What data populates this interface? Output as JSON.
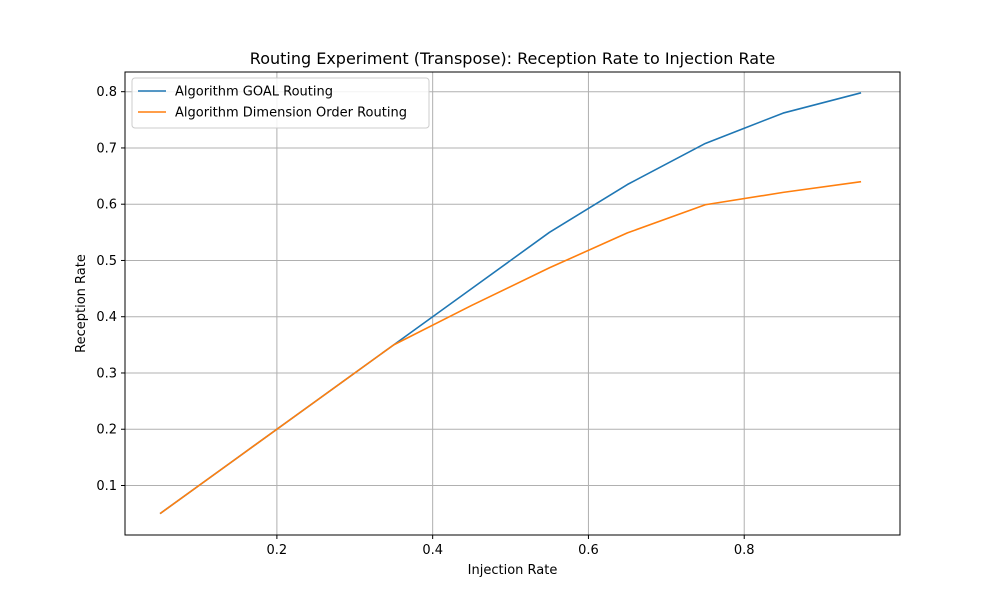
{
  "chart_data": {
    "type": "line",
    "title": "Routing Experiment (Transpose): Reception Rate to Injection Rate",
    "xlabel": "Injection Rate",
    "ylabel": "Reception Rate",
    "xlim": [
      0.005,
      1.0
    ],
    "ylim": [
      0.012,
      0.835
    ],
    "xticks": [
      0.2,
      0.4,
      0.6,
      0.8
    ],
    "xtick_labels": [
      "0.2",
      "0.4",
      "0.6",
      "0.8"
    ],
    "yticks": [
      0.1,
      0.2,
      0.3,
      0.4,
      0.5,
      0.6,
      0.7,
      0.8
    ],
    "ytick_labels": [
      "0.1",
      "0.2",
      "0.3",
      "0.4",
      "0.5",
      "0.6",
      "0.7",
      "0.8"
    ],
    "grid": true,
    "legend_position": "top-left",
    "series": [
      {
        "name": "Algorithm GOAL Routing",
        "color": "#1f77b4",
        "x": [
          0.05,
          0.15,
          0.25,
          0.35,
          0.45,
          0.55,
          0.65,
          0.75,
          0.85,
          0.95
        ],
        "y": [
          0.05,
          0.15,
          0.25,
          0.35,
          0.45,
          0.55,
          0.635,
          0.708,
          0.762,
          0.798
        ]
      },
      {
        "name": "Algorithm Dimension Order Routing",
        "color": "#ff7f0e",
        "x": [
          0.05,
          0.15,
          0.25,
          0.35,
          0.45,
          0.55,
          0.65,
          0.75,
          0.85,
          0.95
        ],
        "y": [
          0.05,
          0.15,
          0.25,
          0.35,
          0.42,
          0.487,
          0.549,
          0.599,
          0.621,
          0.64
        ]
      }
    ]
  }
}
